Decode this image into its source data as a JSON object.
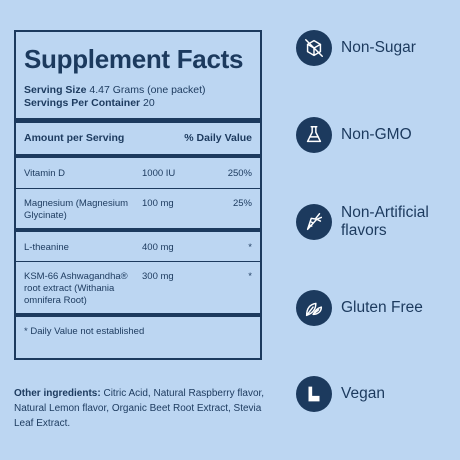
{
  "facts": {
    "title": "Supplement Facts",
    "serving_size_label": "Serving Size",
    "serving_size_value": "4.47 Grams (one packet)",
    "servings_label": "Servings Per Container",
    "servings_value": "20",
    "header_amount": "Amount per Serving",
    "header_dv": "% Daily Value",
    "rows": [
      {
        "name": "Vitamin D",
        "amount": "1000 IU",
        "dv": "250%"
      },
      {
        "name": "Magnesium (Magnesium Glycinate)",
        "amount": "100 mg",
        "dv": "25%"
      },
      {
        "name": "L-theanine",
        "amount": "400 mg",
        "dv": "*"
      },
      {
        "name": "KSM-66 Ashwagandha® root extract (Withania omnifera Root)",
        "amount": "300 mg",
        "dv": "*"
      }
    ],
    "footnote": "* Daily Value not established"
  },
  "other": {
    "label": "Other ingredients:",
    "text": " Citric Acid, Natural Raspberry flavor, Natural Lemon flavor, Organic Beet Root Extract, Stevia Leaf Extract."
  },
  "badges": [
    {
      "icon": "sugar-cube-crossed-icon",
      "label": "Non-Sugar"
    },
    {
      "icon": "flask-icon",
      "label": "Non-GMO"
    },
    {
      "icon": "carrot-icon",
      "label": "Non-Artificial flavors"
    },
    {
      "icon": "leaves-icon",
      "label": "Gluten Free"
    },
    {
      "icon": "vegan-v-icon",
      "label": "Vegan"
    }
  ],
  "colors": {
    "background": "#bcd6f2",
    "ink": "#1c3a5e"
  }
}
